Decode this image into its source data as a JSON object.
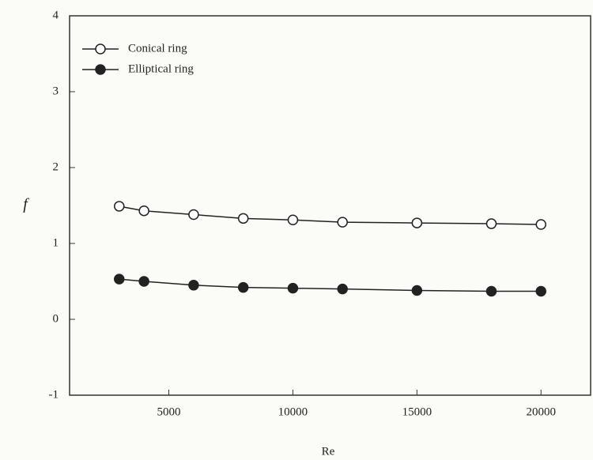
{
  "chart_data": {
    "type": "line",
    "x_label": "Re",
    "y_label": "f",
    "x": [
      3000,
      4000,
      6000,
      8000,
      10000,
      12000,
      15000,
      18000,
      20000
    ],
    "series": [
      {
        "name": "Conical ring",
        "color": "#222222",
        "marker": "open",
        "values": [
          1.49,
          1.43,
          1.38,
          1.33,
          1.31,
          1.28,
          1.27,
          1.26,
          1.25
        ]
      },
      {
        "name": "Elliptical ring",
        "color": "#222222",
        "marker": "filled",
        "values": [
          0.53,
          0.5,
          0.45,
          0.42,
          0.41,
          0.4,
          0.38,
          0.37,
          0.37
        ]
      }
    ],
    "xlim": [
      1000,
      22000
    ],
    "ylim": [
      -1,
      4
    ],
    "xticks": [
      5000,
      10000,
      15000,
      20000
    ],
    "yticks": [
      -1,
      0,
      1,
      2,
      3,
      4
    ],
    "grid": false,
    "legend": "upper left"
  }
}
